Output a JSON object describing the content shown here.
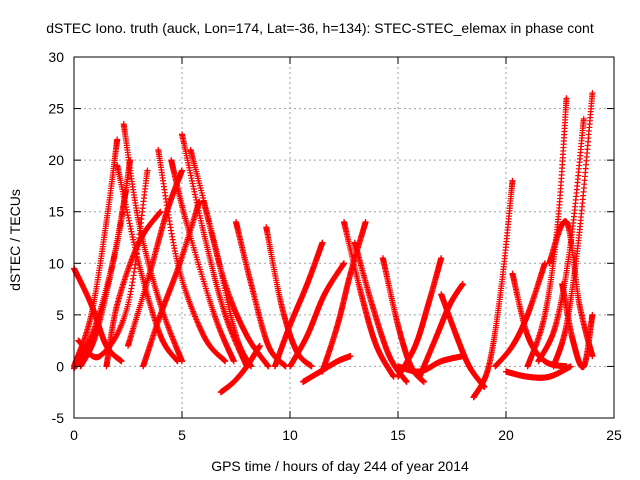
{
  "chart_data": {
    "type": "scatter",
    "title": "dSTEC Iono. truth (auck, Lon=174, Lat=-36, h=134): STEC-STEC_elemax in phase cont",
    "xlabel": "GPS time / hours of day 244 of year 2014",
    "ylabel": "dSTEC  / TECUs",
    "xlim": [
      0,
      25
    ],
    "ylim": [
      -5,
      30
    ],
    "xticks": [
      0,
      5,
      10,
      15,
      20,
      25
    ],
    "yticks": [
      -5,
      0,
      5,
      10,
      15,
      20,
      25,
      30
    ],
    "grid": true,
    "marker": "plus",
    "color": "#ff0000",
    "series": [
      {
        "x": [
          0.0,
          0.8,
          1.5,
          2.2
        ],
        "y": [
          9.5,
          6.0,
          2.0,
          0.5
        ]
      },
      {
        "x": [
          0.0,
          0.8,
          1.5,
          2.0
        ],
        "y": [
          0.0,
          5.0,
          14.0,
          22.0
        ]
      },
      {
        "x": [
          0.0,
          1.0,
          2.0,
          2.6
        ],
        "y": [
          -0.2,
          4.0,
          12.0,
          20.0
        ]
      },
      {
        "x": [
          0.2,
          1.2,
          2.5,
          3.4
        ],
        "y": [
          2.5,
          1.0,
          6.0,
          19.0
        ]
      },
      {
        "x": [
          2.3,
          3.0,
          4.0,
          5.0
        ],
        "y": [
          23.5,
          14.0,
          6.0,
          0.5
        ]
      },
      {
        "x": [
          2.0,
          3.0,
          4.0,
          4.8
        ],
        "y": [
          19.5,
          10.0,
          3.0,
          0.5
        ]
      },
      {
        "x": [
          1.5,
          2.0,
          3.0,
          4.0
        ],
        "y": [
          0.0,
          6.0,
          12.0,
          15.0
        ]
      },
      {
        "x": [
          3.9,
          4.8,
          6.0,
          7.0
        ],
        "y": [
          21.0,
          10.0,
          3.0,
          0.5
        ]
      },
      {
        "x": [
          4.5,
          5.2,
          6.5,
          7.4
        ],
        "y": [
          20.0,
          14.0,
          5.0,
          0.5
        ]
      },
      {
        "x": [
          5.0,
          6.0,
          7.0,
          8.0
        ],
        "y": [
          22.5,
          13.0,
          5.0,
          0.0
        ]
      },
      {
        "x": [
          5.4,
          6.5,
          7.5,
          8.2
        ],
        "y": [
          21.0,
          12.0,
          3.0,
          0.0
        ]
      },
      {
        "x": [
          2.5,
          3.5,
          4.3,
          5.0
        ],
        "y": [
          2.0,
          9.0,
          15.0,
          19.0
        ]
      },
      {
        "x": [
          3.2,
          4.0,
          4.9,
          5.8
        ],
        "y": [
          0.0,
          5.0,
          10.0,
          16.0
        ]
      },
      {
        "x": [
          6.0,
          7.0,
          8.0,
          9.0
        ],
        "y": [
          16.0,
          8.0,
          3.0,
          0.0
        ]
      },
      {
        "x": [
          7.5,
          8.2,
          9.0,
          9.8
        ],
        "y": [
          14.0,
          8.0,
          2.0,
          0.0
        ]
      },
      {
        "x": [
          8.9,
          9.6,
          10.3,
          11.0
        ],
        "y": [
          13.5,
          6.0,
          1.5,
          0.0
        ]
      },
      {
        "x": [
          9.3,
          10.0,
          10.8,
          11.5
        ],
        "y": [
          0.0,
          4.0,
          8.0,
          12.0
        ]
      },
      {
        "x": [
          10.0,
          10.8,
          11.6,
          12.5
        ],
        "y": [
          0.0,
          3.0,
          7.0,
          10.0
        ]
      },
      {
        "x": [
          11.5,
          12.2,
          12.8,
          13.5
        ],
        "y": [
          -0.5,
          4.0,
          9.0,
          14.0
        ]
      },
      {
        "x": [
          12.5,
          13.3,
          14.0,
          14.8
        ],
        "y": [
          14.0,
          7.0,
          2.0,
          -1.0
        ]
      },
      {
        "x": [
          13.0,
          13.8,
          14.6,
          15.4
        ],
        "y": [
          12.0,
          6.0,
          1.0,
          -1.5
        ]
      },
      {
        "x": [
          14.3,
          15.0,
          15.6,
          16.2
        ],
        "y": [
          10.5,
          4.0,
          0.0,
          -1.5
        ]
      },
      {
        "x": [
          15.0,
          15.8,
          16.4,
          17.0
        ],
        "y": [
          -1.0,
          2.0,
          6.0,
          10.5
        ]
      },
      {
        "x": [
          16.0,
          16.8,
          17.4,
          18.0
        ],
        "y": [
          -1.0,
          3.0,
          6.0,
          8.0
        ]
      },
      {
        "x": [
          17.0,
          17.7,
          18.3,
          19.0
        ],
        "y": [
          7.0,
          3.0,
          0.0,
          -2.0
        ]
      },
      {
        "x": [
          18.5,
          19.2,
          19.8,
          20.3
        ],
        "y": [
          -3.0,
          0.0,
          8.0,
          18.0
        ]
      },
      {
        "x": [
          19.5,
          20.3,
          21.0,
          21.8
        ],
        "y": [
          0.0,
          2.0,
          5.0,
          10.0
        ]
      },
      {
        "x": [
          20.3,
          21.0,
          21.8,
          22.8
        ],
        "y": [
          9.0,
          3.0,
          0.5,
          0.0
        ]
      },
      {
        "x": [
          21.0,
          21.8,
          22.4,
          22.8
        ],
        "y": [
          0.0,
          5.0,
          14.0,
          26.0
        ]
      },
      {
        "x": [
          21.5,
          22.3,
          23.0,
          23.6
        ],
        "y": [
          0.5,
          4.0,
          12.0,
          24.0
        ]
      },
      {
        "x": [
          22.2,
          22.8,
          23.4,
          24.0
        ],
        "y": [
          0.0,
          4.0,
          13.0,
          26.5
        ]
      },
      {
        "x": [
          22.0,
          22.8,
          23.4,
          24.0
        ],
        "y": [
          10.0,
          14.0,
          6.0,
          1.0
        ]
      },
      {
        "x": [
          22.6,
          23.1,
          23.6,
          24.0
        ],
        "y": [
          8.0,
          2.5,
          0.0,
          5.0
        ]
      },
      {
        "x": [
          0.3,
          1.0,
          1.8,
          2.4
        ],
        "y": [
          0.0,
          3.0,
          10.0,
          17.0
        ]
      },
      {
        "x": [
          6.8,
          7.4,
          8.0,
          8.6
        ],
        "y": [
          -2.5,
          -1.5,
          0.0,
          2.0
        ]
      },
      {
        "x": [
          10.6,
          11.4,
          12.2,
          12.8
        ],
        "y": [
          -1.5,
          -0.5,
          0.5,
          1.0
        ]
      },
      {
        "x": [
          15.0,
          16.0,
          17.0,
          18.0
        ],
        "y": [
          0.0,
          -0.5,
          0.5,
          1.0
        ]
      },
      {
        "x": [
          20.0,
          21.0,
          22.0,
          23.0
        ],
        "y": [
          -0.5,
          -1.0,
          -1.0,
          0.0
        ]
      }
    ]
  }
}
